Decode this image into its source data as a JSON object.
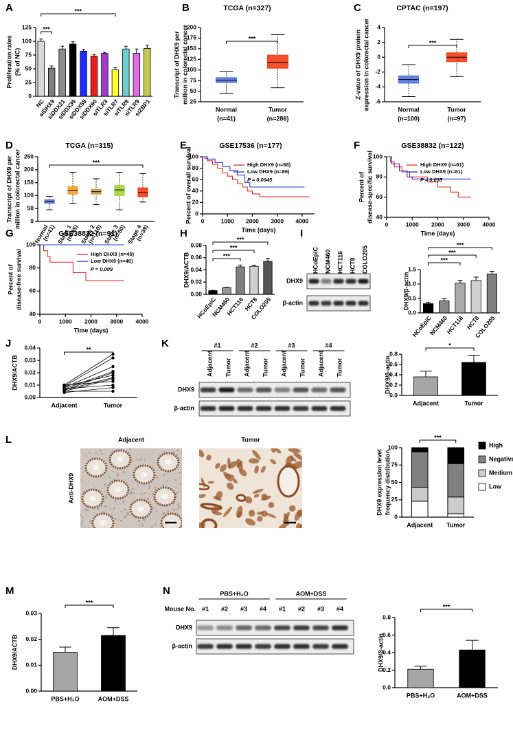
{
  "chart_data": [
    {
      "type": "bar",
      "panel": "A",
      "ylabel": [
        "Proliferation rates",
        "(% of NC)"
      ],
      "categories": [
        "NC",
        "siDHX9",
        "siDDX21",
        "siDDX36",
        "siDDX58",
        "siDDX60",
        "siTLR3",
        "siTLR7",
        "siTLR8",
        "siTLR9",
        "siZBP1"
      ],
      "values": [
        100,
        51,
        86,
        95,
        82,
        73,
        78,
        48,
        86,
        78,
        87
      ],
      "errors": [
        4,
        4,
        5,
        4,
        3,
        3,
        2,
        4,
        5,
        8,
        6
      ],
      "colors": [
        "#d9d9d9",
        "#7f7f7f",
        "#8c8c8c",
        "#000000",
        "#1f2bff",
        "#ee1c1c",
        "#a23cc8",
        "#ffff33",
        "#6ccfd0",
        "#e46ee4",
        "#c9c855"
      ],
      "ylim": [
        0,
        125
      ],
      "yticks": [
        0,
        25,
        50,
        75,
        100,
        125
      ],
      "significance": [
        "***",
        "***"
      ]
    },
    {
      "type": "box",
      "panel": "B",
      "title": "TCGA (n=327)",
      "ylabel": [
        "Transcript  of DHX9 per",
        "million in colorectal cancer"
      ],
      "categories": [
        "Normal",
        "Tumor"
      ],
      "category_notes": [
        "(n=41)",
        "(n=286)"
      ],
      "colors": [
        "#5b7be0",
        "#f2461f"
      ],
      "boxes": [
        {
          "min": 45,
          "q1": 70,
          "median": 76,
          "q3": 82,
          "max": 97
        },
        {
          "min": 58,
          "q1": 104,
          "median": 118,
          "q3": 135,
          "max": 183
        }
      ],
      "ylim": [
        25,
        200
      ],
      "yticks": [
        25,
        50,
        75,
        100,
        125,
        150,
        175,
        200
      ],
      "significance": [
        "***"
      ]
    },
    {
      "type": "box",
      "panel": "C",
      "title": "CPTAC (n=197)",
      "ylabel": [
        "Z-value of DHX9 protein",
        "expression in colorectal cancer"
      ],
      "categories": [
        "Normal",
        "Tumor"
      ],
      "category_notes": [
        "(n=100)",
        "(n=97)"
      ],
      "colors": [
        "#5b7be0",
        "#f2461f"
      ],
      "boxes": [
        {
          "min": -5.3,
          "q1": -3.5,
          "median": -3,
          "q3": -2.5,
          "max": -1
        },
        {
          "min": -2.6,
          "q1": -0.6,
          "median": 0,
          "q3": 0.6,
          "max": 2.4
        }
      ],
      "ylim": [
        -6,
        4
      ],
      "yticks": [
        -6,
        -4,
        -2,
        0,
        2,
        4
      ],
      "significance": [
        "***"
      ]
    },
    {
      "type": "box",
      "panel": "D",
      "title": "TCGA (n=315)",
      "ylabel": [
        "Transcript  of DHX9 per",
        "million in colorectal cancer"
      ],
      "categories": [
        "Normal",
        "Stage 1",
        "Stage 2",
        "Stage 3",
        "Stage 4"
      ],
      "category_notes": [
        "(n=41)",
        "(n=45)",
        "(n=110)",
        "(n=80)",
        "(n=39)"
      ],
      "colors": [
        "#5b7be0",
        "#f4a535",
        "#c9a458",
        "#a8d444",
        "#f2461f"
      ],
      "boxes": [
        {
          "min": 45,
          "q1": 70,
          "median": 77,
          "q3": 84,
          "max": 97
        },
        {
          "min": 70,
          "q1": 105,
          "median": 120,
          "q3": 135,
          "max": 190
        },
        {
          "min": 65,
          "q1": 105,
          "median": 115,
          "q3": 125,
          "max": 165
        },
        {
          "min": 45,
          "q1": 100,
          "median": 122,
          "q3": 140,
          "max": 190
        },
        {
          "min": 75,
          "q1": 95,
          "median": 112,
          "q3": 130,
          "max": 185
        }
      ],
      "ylim": [
        0,
        250
      ],
      "yticks": [
        0,
        50,
        100,
        150,
        200,
        250
      ],
      "significance": [
        "***"
      ]
    },
    {
      "type": "line",
      "panel": "E",
      "title": "GSE17536 (n=177)",
      "ylabel": [
        "Percent of overall survival"
      ],
      "xlabel": "Time (days)",
      "xlim": [
        0,
        4500
      ],
      "xticks": [
        0,
        1000,
        2000,
        3000,
        4000
      ],
      "ylim": [
        0,
        100
      ],
      "yticks": [
        0,
        20,
        40,
        60,
        80,
        100
      ],
      "series": [
        {
          "name": "High DHX9 (n=88)",
          "color": "#e8261e",
          "x": [
            0,
            100,
            100,
            200,
            200,
            400,
            400,
            600,
            600,
            800,
            800,
            1000,
            1000,
            1200,
            1200,
            1400,
            1400,
            1600,
            1600,
            1800,
            1800,
            2000,
            2000,
            2300,
            2300,
            4300
          ],
          "values": [
            100,
            100,
            97,
            97,
            93,
            93,
            87,
            87,
            80,
            80,
            72,
            72,
            66,
            66,
            60,
            60,
            53,
            53,
            47,
            47,
            40,
            40,
            35,
            35,
            30,
            30
          ]
        },
        {
          "name": "Low DHX9 (n=89)",
          "color": "#2233dd",
          "x": [
            0,
            200,
            200,
            500,
            500,
            800,
            800,
            1100,
            1100,
            1400,
            1400,
            1700,
            1700,
            1900,
            1900,
            4100
          ],
          "values": [
            100,
            100,
            96,
            96,
            90,
            90,
            83,
            83,
            76,
            76,
            68,
            68,
            55,
            55,
            47,
            47
          ]
        }
      ],
      "annotation": "P = 0.0045"
    },
    {
      "type": "line",
      "panel": "F",
      "title": "GSE38832 (n=122)",
      "ylabel": [
        "Percent of",
        "disease-specific survival"
      ],
      "xlabel": "Time (days)",
      "xlim": [
        0,
        4000
      ],
      "xticks": [
        0,
        1000,
        2000,
        3000,
        4000
      ],
      "ylim": [
        40,
        100
      ],
      "yticks": [
        40,
        60,
        80,
        100
      ],
      "series": [
        {
          "name": "High DHX9 (n=61)",
          "color": "#e8261e",
          "x": [
            0,
            150,
            150,
            300,
            300,
            600,
            600,
            900,
            900,
            1600,
            1600,
            2000,
            2000,
            2500,
            2500,
            2800,
            2800,
            3300
          ],
          "values": [
            100,
            100,
            95,
            95,
            90,
            90,
            85,
            85,
            80,
            80,
            75,
            75,
            70,
            70,
            65,
            65,
            60,
            60
          ]
        },
        {
          "name": "Low DHX9 (n=61)",
          "color": "#2233dd",
          "x": [
            0,
            200,
            200,
            500,
            500,
            800,
            800,
            1000,
            1000,
            3300
          ],
          "values": [
            100,
            100,
            93,
            93,
            86,
            86,
            80,
            80,
            78,
            78
          ]
        }
      ],
      "annotation": "P = 0.035"
    },
    {
      "type": "line",
      "panel": "G",
      "title": "GSE38832 (n=91)",
      "ylabel": [
        "Percent of",
        "disease-free survival"
      ],
      "xlabel": "Time (days)",
      "xlim": [
        0,
        4000
      ],
      "xticks": [
        0,
        1000,
        2000,
        3000,
        4000
      ],
      "ylim": [
        40,
        100
      ],
      "yticks": [
        40,
        60,
        80,
        100
      ],
      "series": [
        {
          "name": "High DHX9 (n=45)",
          "color": "#e8261e",
          "x": [
            0,
            150,
            150,
            300,
            300,
            400,
            400,
            1300,
            1300,
            1800,
            1800,
            3300
          ],
          "values": [
            100,
            100,
            95,
            95,
            90,
            90,
            85,
            85,
            76,
            76,
            69,
            69
          ]
        },
        {
          "name": "Low DHX9 (n=46)",
          "color": "#2233dd",
          "x": [
            0,
            3300
          ],
          "values": [
            100,
            100
          ]
        }
      ],
      "annotation": "P = 0.009"
    },
    {
      "type": "bar",
      "panel": "H",
      "ylabel": [
        "DHX9/ACTB"
      ],
      "categories": [
        "HCoEpiC",
        "NCM460",
        "HCT116",
        "HCT8",
        "COLO205"
      ],
      "values": [
        0.006,
        0.011,
        0.045,
        0.046,
        0.054
      ],
      "errors": [
        0.0005,
        0.0005,
        0.003,
        0.0015,
        0.005
      ],
      "colors": [
        "#000000",
        "#999999",
        "#808080",
        "#d0d0d0",
        "#555555"
      ],
      "ylim": [
        0,
        0.08
      ],
      "yticks": [
        {
          "value": 0,
          "label": "0.00"
        },
        0.02,
        0.04,
        0.06,
        0.08
      ],
      "significance": [
        "***",
        "***",
        "***"
      ]
    },
    {
      "type": "bar",
      "ylabel": [
        "DHX9/β-actin"
      ],
      "categories": [
        "HCoEpiC",
        "NCM460",
        "HCT116",
        "HCT8",
        "COLO205"
      ],
      "values": [
        0.32,
        0.42,
        1.03,
        1.12,
        1.35
      ],
      "errors": [
        0.05,
        0.07,
        0.1,
        0.12,
        0.09
      ],
      "colors": [
        "#000000",
        "#888888",
        "#aaaaaa",
        "#d0d0d0",
        "#808080"
      ],
      "ylim": [
        0,
        1.5
      ],
      "yticks": [
        {
          "value": 0,
          "label": "0.0"
        },
        0.5,
        {
          "value": 1,
          "label": "1.0"
        },
        1.5
      ],
      "significance": [
        "***",
        "***",
        "***"
      ]
    },
    {
      "type": "line",
      "panel": "J",
      "ylabel": [
        "DHX9/ACTB"
      ],
      "categories": [
        "Adjacent",
        "Tumor"
      ],
      "series": [
        {
          "color": "#000000",
          "values": [
            0.01,
            0.035
          ]
        },
        {
          "color": "#000000",
          "values": [
            0.009,
            0.032
          ]
        },
        {
          "color": "#000000",
          "values": [
            0.008,
            0.025
          ]
        },
        {
          "color": "#000000",
          "values": [
            0.007,
            0.021
          ]
        },
        {
          "color": "#000000",
          "values": [
            0.006,
            0.02
          ]
        },
        {
          "color": "#000000",
          "values": [
            0.009,
            0.018
          ]
        },
        {
          "color": "#000000",
          "values": [
            0.006,
            0.016
          ]
        },
        {
          "color": "#000000",
          "values": [
            0.005,
            0.015
          ]
        },
        {
          "color": "#000000",
          "values": [
            0.01,
            0.013
          ]
        },
        {
          "color": "#000000",
          "values": [
            0.007,
            0.01
          ]
        },
        {
          "color": "#000000",
          "values": [
            0.004,
            0.008
          ]
        },
        {
          "color": "#000000",
          "values": [
            0.005,
            0.005
          ]
        }
      ],
      "ylim": [
        0,
        0.04
      ],
      "yticks": [
        {
          "value": 0,
          "label": "0.00"
        },
        0.01,
        0.02,
        0.03,
        0.04
      ],
      "significance": [
        "**"
      ]
    },
    {
      "type": "bar",
      "ylabel": [
        "DHX9/β-actin"
      ],
      "categories": [
        "Adjacent",
        "Tumor"
      ],
      "values": [
        0.36,
        0.64
      ],
      "errors": [
        0.11,
        0.14
      ],
      "colors": [
        "#a6a6a6",
        "#000000"
      ],
      "ylim": [
        0,
        0.8
      ],
      "yticks": [
        {
          "value": 0,
          "label": "0.0"
        },
        0.2,
        0.4,
        0.6,
        0.8
      ],
      "significance": [
        "*"
      ]
    },
    {
      "type": "bar",
      "ylabel": [
        "DHX9 expression level",
        "frequency distribution"
      ],
      "categories": [
        "Adjacent",
        "Tumor"
      ],
      "series": [
        {
          "name": "High",
          "color": "#000000",
          "values": [
            6,
            23
          ]
        },
        {
          "name": "Negative",
          "color": "#808080",
          "values": [
            51,
            48
          ]
        },
        {
          "name": "Medium",
          "color": "#cccccc",
          "values": [
            20,
            24
          ]
        },
        {
          "name": "Low",
          "color": "#ffffff",
          "values": [
            23,
            5
          ]
        }
      ],
      "ylim": [
        0,
        100
      ],
      "yticks": [
        0,
        25,
        50,
        75,
        100
      ],
      "significance": [
        "***"
      ]
    },
    {
      "type": "bar",
      "panel": "M",
      "ylabel": [
        "DHX9/ACTB"
      ],
      "categories": [
        "PBS+H₂O",
        "AOM+DSS"
      ],
      "values": [
        0.015,
        0.0215
      ],
      "errors": [
        0.002,
        0.003
      ],
      "colors": [
        "#a6a6a6",
        "#000000"
      ],
      "ylim": [
        0,
        0.03
      ],
      "yticks": [
        {
          "value": 0,
          "label": "0.00"
        },
        0.01,
        0.02,
        0.03
      ],
      "significance": [
        "***"
      ]
    },
    {
      "type": "bar",
      "ylabel": [
        "DHX9/β-actin"
      ],
      "categories": [
        "PBS+H₂O",
        "AOM+DSS"
      ],
      "values": [
        0.21,
        0.43
      ],
      "errors": [
        0.035,
        0.11
      ],
      "colors": [
        "#a6a6a6",
        "#000000"
      ],
      "ylim": [
        0,
        0.8
      ],
      "yticks": [
        {
          "value": 0,
          "label": "0.0"
        },
        0.2,
        0.4,
        0.6,
        0.8
      ],
      "significance": [
        "***"
      ]
    }
  ],
  "blots": [
    {
      "panel": "I",
      "lanes": [
        "HCoEpiC",
        "NCM460",
        "HCT116",
        "HCT8",
        "COLO205"
      ],
      "rows": [
        "DHX9",
        "β-actin"
      ]
    },
    {
      "panel": "K",
      "groups": [
        "#1",
        "#2",
        "#3",
        "#4"
      ],
      "lanes": [
        "Adjacent",
        "Tumor",
        "Adjacent",
        "Tumor",
        "Adjacent",
        "Tumor",
        "Adjacent",
        "Tumor"
      ],
      "rows": [
        "DHX9",
        "β-actin"
      ]
    },
    {
      "panel": "N",
      "groups": [
        "PBS+H₂O",
        "AOM+DSS"
      ],
      "lane_title": "Mouse No.",
      "lanes": [
        "#1",
        "#2",
        "#3",
        "#4",
        "#1",
        "#2",
        "#3",
        "#4"
      ],
      "rows": [
        "DHX9",
        "β-actin"
      ]
    }
  ],
  "micrographs": {
    "panel": "L",
    "stain": "Anti-DHX9",
    "titles": [
      "Adjacent",
      "Tumor"
    ]
  }
}
